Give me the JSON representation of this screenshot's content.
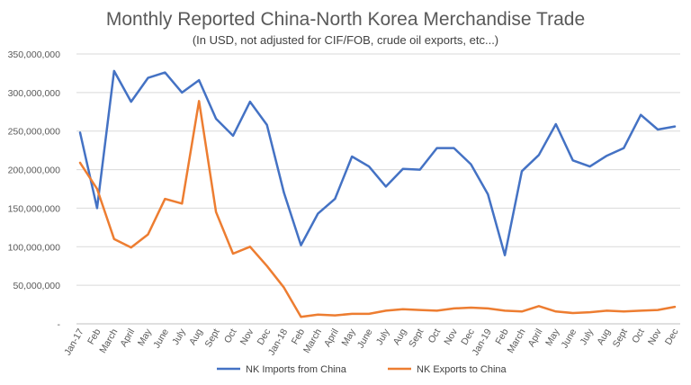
{
  "chart_data": {
    "type": "line",
    "title": "Monthly Reported China-North Korea Merchandise Trade",
    "subtitle": "(In USD, not adjusted for CIF/FOB, crude oil exports, etc...)",
    "categories": [
      "Jan-17",
      "Feb",
      "March",
      "April",
      "May",
      "June",
      "July",
      "Aug",
      "Sept",
      "Oct",
      "Nov",
      "Dec",
      "Jan-18",
      "Feb",
      "March",
      "April",
      "May",
      "June",
      "July",
      "Aug",
      "Sept",
      "Oct",
      "Nov",
      "Dec",
      "Jan-19",
      "Feb",
      "March",
      "April",
      "May",
      "June",
      "July",
      "Aug",
      "Sept",
      "Oct",
      "Nov",
      "Dec"
    ],
    "ylim": [
      0,
      350000000
    ],
    "yticks": [
      {
        "value": 0,
        "label": "-"
      },
      {
        "value": 50000000,
        "label": "50,000,000"
      },
      {
        "value": 100000000,
        "label": "100,000,000"
      },
      {
        "value": 150000000,
        "label": "150,000,000"
      },
      {
        "value": 200000000,
        "label": "200,000,000"
      },
      {
        "value": 250000000,
        "label": "250,000,000"
      },
      {
        "value": 300000000,
        "label": "300,000,000"
      },
      {
        "value": 350000000,
        "label": "350,000,000"
      }
    ],
    "grid": true,
    "legend_position": "bottom",
    "series": [
      {
        "name": "NK Imports from China",
        "color": "#4472c4",
        "values": [
          248000000,
          150000000,
          328000000,
          288000000,
          319000000,
          326000000,
          300000000,
          316000000,
          266000000,
          244000000,
          288000000,
          258000000,
          170000000,
          102000000,
          143000000,
          162000000,
          217000000,
          204000000,
          178000000,
          201000000,
          200000000,
          228000000,
          228000000,
          207000000,
          168000000,
          89000000,
          198000000,
          219000000,
          259000000,
          212000000,
          204000000,
          218000000,
          228000000,
          271000000,
          252000000,
          256000000
        ]
      },
      {
        "name": "NK Exports to China",
        "color": "#ed7d31",
        "values": [
          209000000,
          175000000,
          110000000,
          99000000,
          116000000,
          162000000,
          156000000,
          289000000,
          145000000,
          91000000,
          100000000,
          75000000,
          47000000,
          9000000,
          12000000,
          11000000,
          13000000,
          13000000,
          17000000,
          19000000,
          18000000,
          17000000,
          20000000,
          21000000,
          20000000,
          17000000,
          16000000,
          23000000,
          16000000,
          14000000,
          15000000,
          17000000,
          16000000,
          17000000,
          18000000,
          22000000
        ]
      }
    ]
  }
}
